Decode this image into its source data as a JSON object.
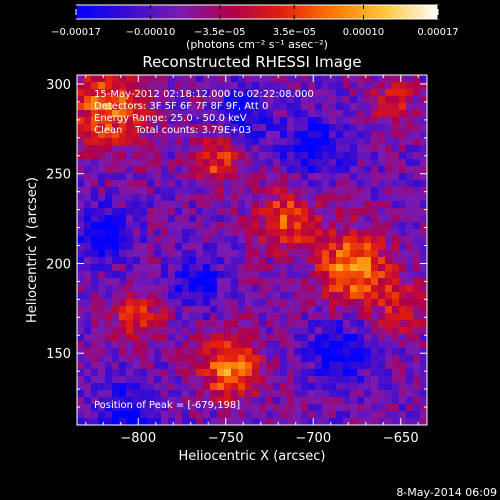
{
  "chart_data": {
    "type": "heatmap",
    "title": "Reconstructed RHESSI Image",
    "xlabel": "Heliocentric X (arcsec)",
    "ylabel": "Heliocentric Y (arcsec)",
    "xlim": [
      -835,
      -635
    ],
    "ylim": [
      110,
      305
    ],
    "xticks": [
      -800,
      -750,
      -700,
      -650
    ],
    "yticks": [
      150,
      200,
      250,
      300
    ],
    "xticklabels": [
      "−800",
      "−750",
      "−700",
      "−650"
    ],
    "yticklabels": [
      "150",
      "200",
      "250",
      "300"
    ],
    "colorbar": {
      "range": [
        -0.00017,
        0.00017
      ],
      "ticks": [
        -0.00017,
        -0.0001,
        -3.5e-05,
        3.5e-05,
        0.0001,
        0.00017
      ],
      "ticklabels": [
        "−0.00017",
        "−0.00010",
        "−3.5e−05",
        "3.5e−05",
        "0.00010",
        "0.00017"
      ],
      "units": "(photons cm⁻² s⁻¹ asec⁻²)",
      "colors": [
        "#0000ff",
        "#3a0ccf",
        "#7a1ab2",
        "#b0004a",
        "#e3200c",
        "#ff7a00",
        "#ffc840",
        "#ffffff"
      ]
    },
    "annotations": [
      "15-May-2012 02:18:12.000 to 02:22:08.000",
      "Detectors: 3F 5F 6F 7F 8F 9F, Att 0",
      "Energy Range: 25.0 - 50.0 keV",
      "Clean    Total counts: 3.79E+03"
    ],
    "peak_label": "Position of Peak = [-679,198]",
    "timestamp": "8-May-2014 06:09",
    "grid": false,
    "sources": [
      {
        "x": -677,
        "y": 198,
        "amplitude": 0.00017,
        "sigma": 14
      },
      {
        "x": -748,
        "y": 142,
        "amplitude": 0.00016,
        "sigma": 12
      },
      {
        "x": -818,
        "y": 287,
        "amplitude": 0.00014,
        "sigma": 16
      },
      {
        "x": -715,
        "y": 225,
        "amplitude": 0.00012,
        "sigma": 13
      },
      {
        "x": -755,
        "y": 258,
        "amplitude": 0.00011,
        "sigma": 10
      },
      {
        "x": -650,
        "y": 175,
        "amplitude": 9e-05,
        "sigma": 10
      },
      {
        "x": -800,
        "y": 170,
        "amplitude": 0.0001,
        "sigma": 11
      },
      {
        "x": -655,
        "y": 290,
        "amplitude": 8e-05,
        "sigma": 10
      },
      {
        "x": -820,
        "y": 215,
        "amplitude": -0.00012,
        "sigma": 10
      },
      {
        "x": -805,
        "y": 115,
        "amplitude": -0.0001,
        "sigma": 12
      },
      {
        "x": -740,
        "y": 285,
        "amplitude": -0.0001,
        "sigma": 10
      },
      {
        "x": -685,
        "y": 150,
        "amplitude": -0.0001,
        "sigma": 11
      },
      {
        "x": -700,
        "y": 265,
        "amplitude": -0.0001,
        "sigma": 12
      },
      {
        "x": -767,
        "y": 190,
        "amplitude": -8e-05,
        "sigma": 10
      }
    ],
    "baseline": -8e-05
  }
}
